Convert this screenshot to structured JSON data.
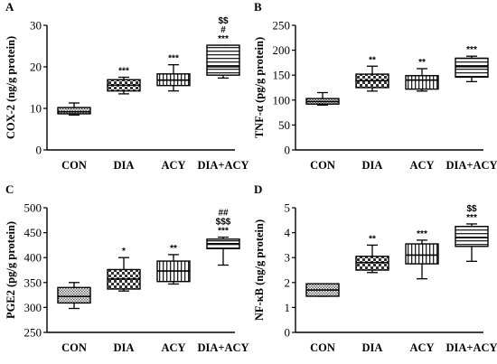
{
  "chart_data": [
    {
      "panel_label": "A",
      "type": "box",
      "ylabel": "COX-2 (ng/g protein)",
      "ylim": [
        0,
        30
      ],
      "yticks": [
        0,
        10,
        20,
        30
      ],
      "categories": [
        "CON",
        "DIA",
        "ACY",
        "DIA+ACY"
      ],
      "boxes": [
        {
          "min": 8.4,
          "q1": 8.7,
          "median": 9.2,
          "q3": 10.2,
          "max": 11.3,
          "annotation": [],
          "pattern": "dots"
        },
        {
          "min": 13.5,
          "q1": 14.2,
          "median": 15.6,
          "q3": 16.9,
          "max": 17.5,
          "annotation": [
            "***"
          ],
          "pattern": "checker"
        },
        {
          "min": 14.2,
          "q1": 15.5,
          "median": 16.8,
          "q3": 18.3,
          "max": 20.5,
          "annotation": [
            "***"
          ],
          "pattern": "vlines"
        },
        {
          "min": 17.3,
          "q1": 18.0,
          "median": 20.0,
          "q3": 25.2,
          "max": 25.2,
          "annotation": [
            "$$",
            "#",
            "***"
          ],
          "pattern": "hlines"
        }
      ]
    },
    {
      "panel_label": "B",
      "type": "box",
      "ylabel": "TNF-α (pg/g protein)",
      "ylim": [
        0,
        250
      ],
      "yticks": [
        0,
        50,
        100,
        150,
        200,
        250
      ],
      "categories": [
        "CON",
        "DIA",
        "ACY",
        "DIA+ACY"
      ],
      "boxes": [
        {
          "min": 90,
          "q1": 92,
          "median": 97,
          "q3": 103,
          "max": 115,
          "annotation": [],
          "pattern": "dots"
        },
        {
          "min": 118,
          "q1": 125,
          "median": 139,
          "q3": 152,
          "max": 168,
          "annotation": [
            "**"
          ],
          "pattern": "checker"
        },
        {
          "min": 118,
          "q1": 122,
          "median": 140,
          "q3": 149,
          "max": 163,
          "annotation": [
            "**"
          ],
          "pattern": "vlines"
        },
        {
          "min": 137,
          "q1": 146,
          "median": 167,
          "q3": 184,
          "max": 188,
          "annotation": [
            "***"
          ],
          "pattern": "hlines"
        }
      ]
    },
    {
      "panel_label": "C",
      "type": "box",
      "ylabel": "PGE2 (pg/g protein)",
      "ylim": [
        250,
        500
      ],
      "yticks": [
        250,
        300,
        350,
        400,
        450,
        500
      ],
      "categories": [
        "CON",
        "DIA",
        "ACY",
        "DIA+ACY"
      ],
      "boxes": [
        {
          "min": 298,
          "q1": 309,
          "median": 322,
          "q3": 340,
          "max": 350,
          "annotation": [],
          "pattern": "dots"
        },
        {
          "min": 333,
          "q1": 337,
          "median": 357,
          "q3": 376,
          "max": 400,
          "annotation": [
            "*"
          ],
          "pattern": "checker"
        },
        {
          "min": 347,
          "q1": 352,
          "median": 373,
          "q3": 393,
          "max": 406,
          "annotation": [
            "**"
          ],
          "pattern": "vlines"
        },
        {
          "min": 385,
          "q1": 418,
          "median": 428,
          "q3": 437,
          "max": 441,
          "annotation": [
            "##",
            "$$$",
            "***"
          ],
          "pattern": "hlines"
        }
      ]
    },
    {
      "panel_label": "D",
      "type": "box",
      "ylabel": "NF-κB (ng/g protein)",
      "ylim": [
        0,
        5
      ],
      "yticks": [
        0,
        1,
        2,
        3,
        4,
        5
      ],
      "categories": [
        "CON",
        "DIA",
        "ACY",
        "DIA+ACY"
      ],
      "boxes": [
        {
          "min": 1.45,
          "q1": 1.45,
          "median": 1.7,
          "q3": 1.95,
          "max": 1.95,
          "annotation": [],
          "pattern": "dots"
        },
        {
          "min": 2.4,
          "q1": 2.5,
          "median": 2.8,
          "q3": 3.05,
          "max": 3.5,
          "annotation": [
            "**"
          ],
          "pattern": "checker"
        },
        {
          "min": 2.15,
          "q1": 2.75,
          "median": 3.1,
          "q3": 3.55,
          "max": 3.7,
          "annotation": [
            "***"
          ],
          "pattern": "vlines"
        },
        {
          "min": 2.85,
          "q1": 3.45,
          "median": 3.8,
          "q3": 4.25,
          "max": 4.35,
          "annotation": [
            "$$",
            "***"
          ],
          "pattern": "hlines"
        }
      ]
    }
  ]
}
